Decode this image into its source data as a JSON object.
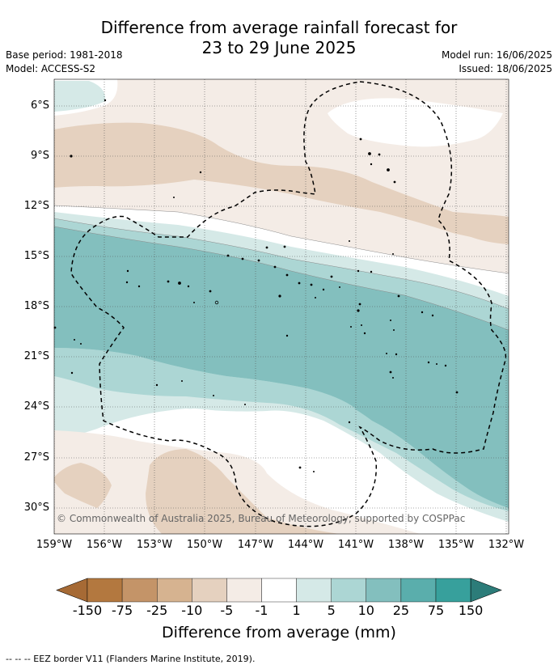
{
  "header": {
    "title_line1": "Difference from average rainfall forecast for",
    "title_line2": "23 to 29 June 2025",
    "base_period": "Base period: 1981-2018",
    "model": "Model: ACCESS-S2",
    "model_run": "Model run: 16/06/2025",
    "issued": "Issued: 18/06/2025"
  },
  "map": {
    "lat_labels": [
      "6°S",
      "9°S",
      "12°S",
      "15°S",
      "18°S",
      "21°S",
      "24°S",
      "27°S",
      "30°S"
    ],
    "lon_labels": [
      "159°W",
      "156°W",
      "153°W",
      "150°W",
      "147°W",
      "144°W",
      "141°W",
      "138°W",
      "135°W",
      "132°W"
    ],
    "copyright": "© Commonwealth of Australia 2025, Bureau of Meteorology, supported by COSPPac"
  },
  "colorbar": {
    "ticks": [
      "-150",
      "-75",
      "-25",
      "-10",
      "-5",
      "-1",
      "1",
      "5",
      "10",
      "25",
      "75",
      "150"
    ],
    "colors": [
      "#a66a35",
      "#b3783f",
      "#c49468",
      "#d6b390",
      "#e5d1bf",
      "#f4ece6",
      "#ffffff",
      "#d5e9e7",
      "#acd6d4",
      "#83bfbe",
      "#5aaeac",
      "#37a09c",
      "#2c7c79"
    ],
    "label": "Difference from average (mm)"
  },
  "footnote": "-- -- -- EEZ border V11 (Flanders Marine Institute, 2019)."
}
